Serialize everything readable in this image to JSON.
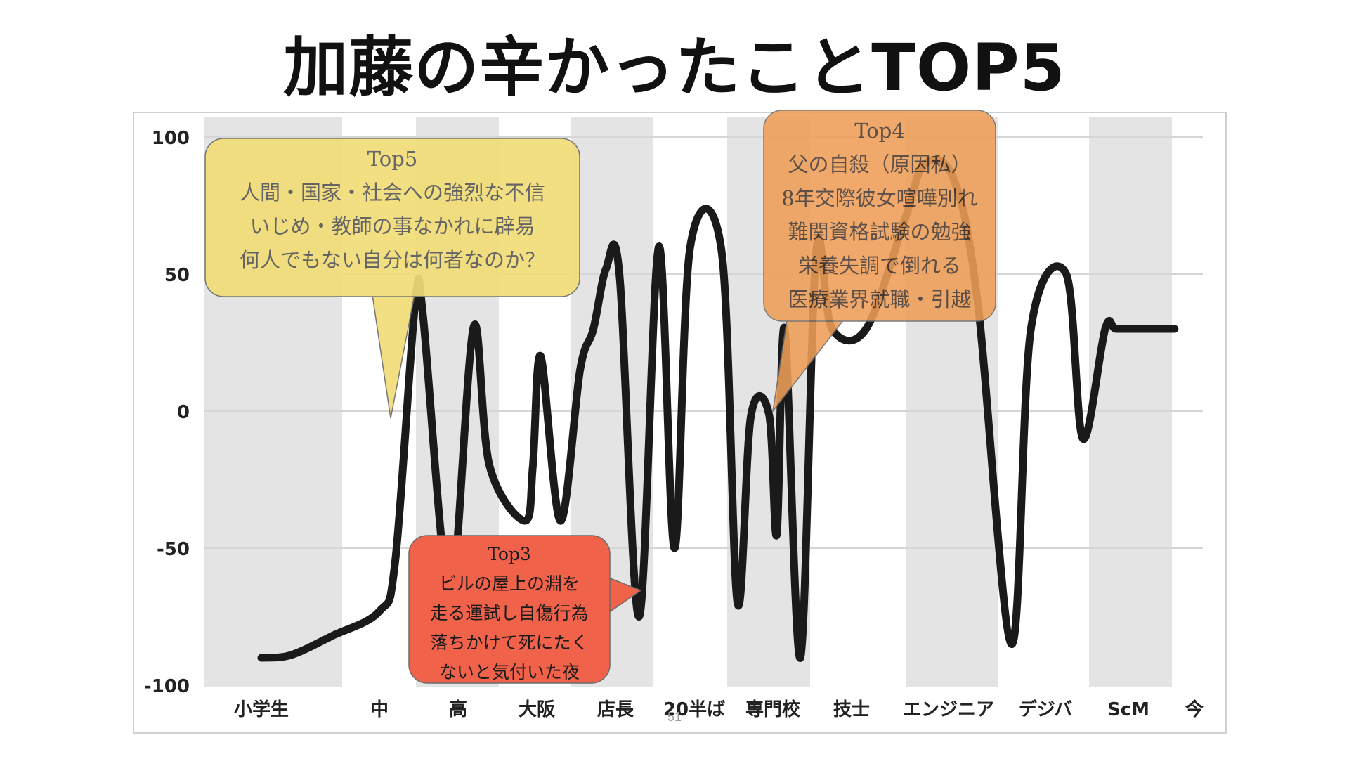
{
  "title": "加藤の辛かったことTOP5",
  "page_number": "51",
  "colors": {
    "band": "#e4e4e4",
    "grid": "#d6d6d6",
    "line": "#1a1a1a",
    "top5_bubble": "#f1dd78",
    "top4_bubble": "#ee9e57",
    "top3_bubble": "#f1624b"
  },
  "chart_data": {
    "type": "line",
    "title": "",
    "xlabel": "",
    "ylabel": "",
    "ylim": [
      -100,
      100
    ],
    "yticks": [
      "100",
      "50",
      "0",
      "-50",
      "-100"
    ],
    "grid": true,
    "categories": [
      "小学生",
      "中",
      "高",
      "大阪",
      "店長",
      "20半ば",
      "専門校",
      "技士",
      "エンジニア",
      "デジバ",
      "ScM",
      "今"
    ],
    "series": [
      {
        "x": [
          0.0,
          0.25,
          0.6,
          1.0,
          1.2,
          1.45,
          1.55,
          1.8,
          1.95,
          2.2,
          2.4,
          2.85,
          2.95,
          3.05,
          3.3,
          3.55,
          3.72,
          3.88,
          4.05,
          4.3,
          4.55,
          4.75,
          4.95,
          5.35,
          5.55,
          5.72,
          5.95,
          6.05,
          6.15,
          6.35,
          6.55,
          6.75,
          7.15,
          7.55,
          7.75,
          8.05,
          8.3,
          8.65,
          8.85,
          9.25,
          9.45,
          9.72,
          9.85,
          10.15,
          10.3,
          10.45,
          10.7
        ],
        "y": [
          -90,
          -89,
          -82,
          -73,
          -55,
          38,
          36,
          -50,
          -60,
          31,
          -20,
          -40,
          -20,
          20,
          -40,
          15,
          30,
          52,
          50,
          -75,
          60,
          -50,
          60,
          58,
          -70,
          -2,
          -1,
          -45,
          30,
          -90,
          58,
          30,
          30,
          70,
          90,
          85,
          40,
          -85,
          30,
          50,
          -10,
          30,
          30,
          30,
          30,
          30,
          30
        ]
      }
    ]
  },
  "callouts": {
    "top5": {
      "heading": "Top5",
      "lines": [
        "人間・国家・社会への強烈な不信",
        "いじめ・教師の事なかれに辟易",
        "何人でもない自分は何者なのか？"
      ]
    },
    "top4": {
      "heading": "Top4",
      "lines": [
        "父の自殺（原因私）",
        "8年交際彼女喧嘩別れ",
        "難関資格試験の勉強",
        "栄養失調で倒れる",
        "医療業界就職・引越"
      ]
    },
    "top3": {
      "heading": "Top3",
      "lines": [
        "ビルの屋上の淵を",
        "走る運試し自傷行為",
        "落ちかけて死にたく",
        "ないと気付いた夜"
      ]
    }
  }
}
